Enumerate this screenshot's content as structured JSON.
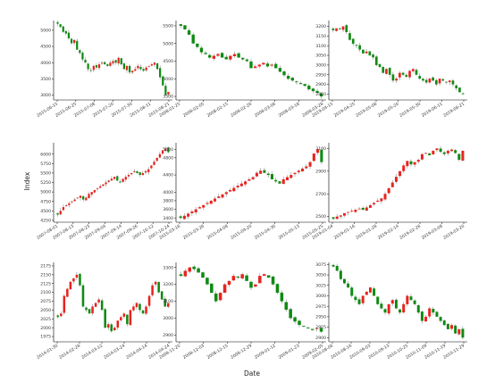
{
  "figure": {
    "xlabel": "Date",
    "ylabel": "Index"
  },
  "colors": {
    "up": "#e8231f",
    "down": "#0e8a12",
    "axis": "#000000"
  },
  "chart_data": [
    {
      "type": "candlestick",
      "xticks": [
        "2015-06-15",
        "2015-06-25",
        "2015-07-08",
        "2015-07-20",
        "2015-07-30",
        "2015-08-11",
        "2015-08-21"
      ],
      "ylim": [
        2850,
        5300
      ],
      "yticks": [
        "5000",
        "4500",
        "4000",
        "3500",
        "3000"
      ],
      "closes": [
        5200,
        5100,
        4950,
        4900,
        4750,
        4600,
        4700,
        4400,
        4300,
        4100,
        4000,
        3800,
        3750,
        3900,
        3850,
        3950,
        4000,
        3950,
        3900,
        4000,
        4050,
        4000,
        4150,
        3950,
        3800,
        3900,
        3700,
        3750,
        3800,
        3900,
        3800,
        3750,
        3850,
        3900,
        3950,
        4000,
        3800,
        3550,
        3300,
        3000,
        3100
      ]
    },
    {
      "type": "candlestick",
      "xticks": [
        "2008-01-25",
        "2008-02-05",
        "2008-02-15",
        "2008-02-26",
        "2008-03-06",
        "2008-03-18",
        "2008-03-28"
      ],
      "ylim": [
        3400,
        5650
      ],
      "yticks": [
        "5500",
        "5000",
        "4500",
        "4000",
        "3500"
      ],
      "closes": [
        5500,
        5400,
        5250,
        5000,
        4900,
        4750,
        4700,
        4600,
        4650,
        4700,
        4600,
        4550,
        4650,
        4700,
        4600,
        4550,
        4500,
        4300,
        4350,
        4400,
        4450,
        4350,
        4400,
        4300,
        4200,
        4100,
        4000,
        3950,
        3900,
        3850,
        3800,
        3700,
        3650,
        3600,
        3500
      ]
    },
    {
      "type": "candlestick",
      "xticks": [
        "2019-04-15",
        "2019-04-25",
        "2019-05-08",
        "2019-05-20",
        "2019-05-30",
        "2019-06-11",
        "2019-06-21"
      ],
      "ylim": [
        2820,
        3230
      ],
      "yticks": [
        "3200",
        "3150",
        "3100",
        "3050",
        "3000",
        "2950",
        "2900",
        "2850"
      ],
      "closes": [
        3180,
        3190,
        3185,
        3200,
        3170,
        3130,
        3110,
        3100,
        3080,
        3060,
        3070,
        3050,
        3040,
        3000,
        2990,
        2960,
        2980,
        2950,
        2920,
        2930,
        2960,
        2950,
        2940,
        2970,
        2980,
        2950,
        2930,
        2920,
        2910,
        2930,
        2920,
        2900,
        2930,
        2920,
        2910,
        2920,
        2900,
        2880,
        2860,
        2850
      ]
    },
    {
      "type": "candlestick",
      "xticks": [
        "2007-08-01",
        "2007-08-13",
        "2007-08-23",
        "2007-09-04",
        "2007-09-14",
        "2007-09-26",
        "2007-10-12",
        "2007-10-24"
      ],
      "ylim": [
        4200,
        6300
      ],
      "yticks": [
        "6000",
        "5750",
        "5500",
        "5250",
        "5000",
        "4750",
        "4500",
        "4250"
      ],
      "closes": [
        4400,
        4500,
        4600,
        4650,
        4700,
        4750,
        4800,
        4850,
        4900,
        4800,
        4850,
        4950,
        5000,
        5050,
        5100,
        5150,
        5200,
        5250,
        5300,
        5350,
        5400,
        5300,
        5250,
        5350,
        5400,
        5450,
        5500,
        5550,
        5500,
        5450,
        5500,
        5550,
        5600,
        5700,
        5800,
        5900,
        6000,
        6100,
        6150,
        6050
      ]
    },
    {
      "type": "candlestick",
      "xticks": [
        "2015-03-16",
        "2015-03-26",
        "2015-04-08",
        "2015-04-20",
        "2015-04-30",
        "2015-05-13",
        "2015-05-25"
      ],
      "ylim": [
        3300,
        5150
      ],
      "yticks": [
        "5000",
        "4800",
        "4400",
        "4000",
        "3800",
        "3600",
        "3400"
      ],
      "closes": [
        3400,
        3450,
        3500,
        3550,
        3600,
        3650,
        3700,
        3750,
        3800,
        3850,
        3900,
        3950,
        4000,
        4050,
        4100,
        4150,
        4200,
        4250,
        4300,
        4350,
        4450,
        4500,
        4450,
        4400,
        4300,
        4250,
        4200,
        4300,
        4350,
        4400,
        4450,
        4500,
        4550,
        4600,
        4700,
        4900,
        5000,
        4700
      ]
    },
    {
      "type": "candlestick",
      "xticks": [
        "2019-01-04",
        "2019-01-16",
        "2019-01-28",
        "2019-02-14",
        "2019-02-26",
        "2019-03-08",
        "2019-03-20"
      ],
      "ylim": [
        2450,
        3150
      ],
      "yticks": [
        "3100",
        "2900",
        "2700",
        "2500"
      ],
      "closes": [
        2480,
        2500,
        2510,
        2530,
        2540,
        2550,
        2560,
        2570,
        2560,
        2580,
        2600,
        2620,
        2640,
        2660,
        2700,
        2750,
        2800,
        2850,
        2900,
        2950,
        2990,
        2960,
        2980,
        3000,
        3050,
        3060,
        3040,
        3080,
        3100,
        3070,
        3050,
        3080,
        3090,
        3060,
        3000,
        3080
      ]
    },
    {
      "type": "candlestick",
      "xticks": [
        "2014-01-30",
        "2014-02-28",
        "2014-03-12",
        "2014-03-24",
        "2014-04-14",
        "2014-04-24"
      ],
      "ylim": [
        1960,
        2185
      ],
      "yticks": [
        "2175",
        "2150",
        "2125",
        "2100",
        "2075",
        "2050",
        "2025",
        "2000",
        "1975"
      ],
      "closes": [
        2030,
        2040,
        2090,
        2110,
        2130,
        2140,
        2150,
        2120,
        2060,
        2050,
        2040,
        2060,
        2070,
        2080,
        2050,
        2000,
        2010,
        1990,
        2000,
        2020,
        2030,
        2040,
        2010,
        2050,
        2060,
        2070,
        2050,
        2040,
        2060,
        2090,
        2120,
        2130,
        2100,
        2080,
        2060,
        2070
      ]
    },
    {
      "type": "candlestick",
      "xticks": [
        "2008-11-20",
        "2008-12-03",
        "2008-12-15",
        "2008-12-29",
        "2009-01-12",
        "2009-01-23",
        "2009-02-05"
      ],
      "ylim": [
        2860,
        3330
      ],
      "yticks": [
        "3300",
        "3200",
        "3100",
        "3000",
        "2900"
      ],
      "closes": [
        3250,
        3280,
        3300,
        3290,
        3270,
        3240,
        3200,
        3150,
        3100,
        3150,
        3200,
        3220,
        3250,
        3240,
        3260,
        3220,
        3180,
        3200,
        3250,
        3260,
        3240,
        3200,
        3150,
        3100,
        3050,
        3000,
        2980,
        2960,
        2950,
        2940,
        2930,
        2940,
        2920
      ]
    },
    {
      "type": "candlestick",
      "xticks": [
        "2010-08-06",
        "2010-08-16",
        "2010-09-03",
        "2010-09-13",
        "2010-10-25",
        "2010-11-09",
        "2010-11-19",
        "2010-11-29"
      ],
      "ylim": [
        2890,
        3080
      ],
      "yticks": [
        "3075",
        "3050",
        "3025",
        "3000",
        "2975",
        "2950",
        "2925",
        "2900"
      ],
      "closes": [
        3070,
        3060,
        3040,
        3030,
        3020,
        3000,
        2990,
        2980,
        3000,
        3010,
        3020,
        3000,
        2980,
        2970,
        2960,
        2980,
        2990,
        2970,
        2960,
        2980,
        3000,
        2990,
        2980,
        2960,
        2940,
        2950,
        2970,
        2960,
        2950,
        2940,
        2930,
        2920,
        2930,
        2910,
        2920,
        2900
      ]
    }
  ]
}
